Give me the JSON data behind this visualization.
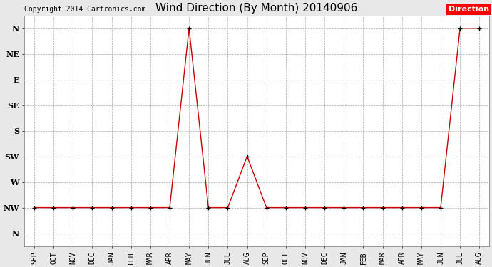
{
  "title": "Wind Direction (By Month) 20140906",
  "copyright_text": "Copyright 2014 Cartronics.com",
  "legend_label": "Direction",
  "legend_bg": "#ff0000",
  "legend_fg": "#ffffff",
  "x_labels": [
    "SEP",
    "OCT",
    "NOV",
    "DEC",
    "JAN",
    "FEB",
    "MAR",
    "APR",
    "MAY",
    "JUN",
    "JUL",
    "AUG",
    "SEP",
    "OCT",
    "NOV",
    "DEC",
    "JAN",
    "FEB",
    "MAR",
    "APR",
    "MAY",
    "JUN",
    "JUL",
    "AUG"
  ],
  "y_labels_top_to_bot": [
    "N",
    "NW",
    "W",
    "SW",
    "S",
    "SE",
    "E",
    "NE",
    "N"
  ],
  "data_points": [
    7,
    7,
    7,
    7,
    7,
    7,
    7,
    7,
    0,
    7,
    7,
    5,
    7,
    7,
    7,
    7,
    7,
    7,
    7,
    7,
    7,
    7,
    0,
    0
  ],
  "line_color": "#cc0000",
  "marker_color": "#000000",
  "bg_color": "#e8e8e8",
  "plot_bg": "#ffffff",
  "grid_color": "#aaaaaa",
  "title_fontsize": 11,
  "copyright_fontsize": 7,
  "tick_fontsize": 7,
  "ylabel_fontsize": 8,
  "figwidth": 6.9,
  "figheight": 3.75,
  "dpi": 100
}
